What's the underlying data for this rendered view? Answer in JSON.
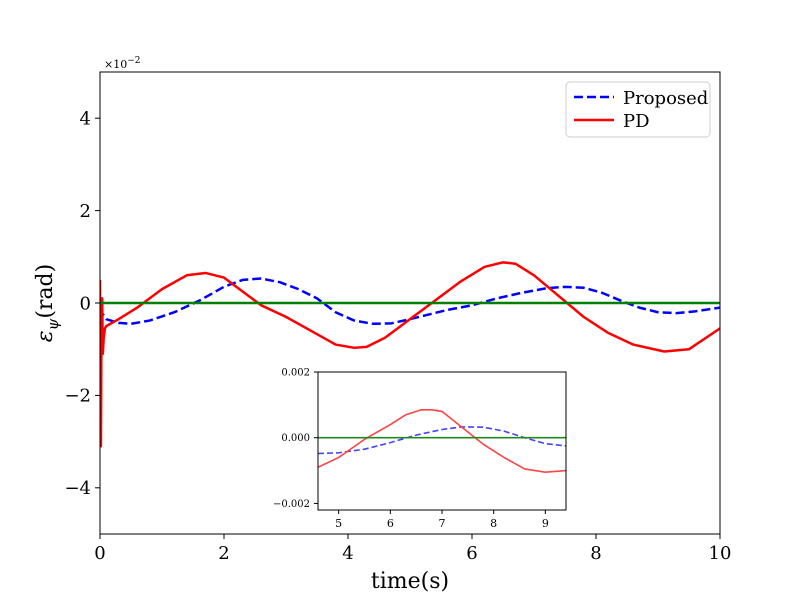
{
  "chart_data": {
    "type": "line",
    "main": {
      "xlabel": "time(s)",
      "ylabel": "ε_ψ(rad)",
      "ylabel_main": "ε",
      "ylabel_sub": "ψ",
      "ylabel_unit": "(rad)",
      "scale_label_base": "×10",
      "scale_label_exp": "−2",
      "xlim": [
        0,
        10
      ],
      "ylim": [
        -5,
        5
      ],
      "xticks": [
        0,
        2,
        4,
        6,
        8,
        10
      ],
      "yticks": [
        -4,
        -2,
        0,
        2,
        4
      ],
      "ytick_labels": [
        "−4",
        "−2",
        "0",
        "2",
        "4"
      ],
      "legend_position": "top-right",
      "series": [
        {
          "name": "Proposed",
          "color": "#0000ff",
          "style": "dashed",
          "x": [
            0.0,
            0.02,
            0.05,
            0.1,
            0.3,
            0.5,
            0.8,
            1.2,
            1.6,
            2.0,
            2.3,
            2.6,
            2.9,
            3.2,
            3.5,
            3.8,
            4.1,
            4.4,
            4.7,
            5.0,
            5.3,
            5.6,
            6.0,
            6.4,
            6.8,
            7.2,
            7.5,
            7.8,
            8.1,
            8.4,
            8.7,
            9.0,
            9.3,
            9.6,
            10.0
          ],
          "y": [
            -0.3,
            -0.2,
            -0.25,
            -0.35,
            -0.43,
            -0.45,
            -0.38,
            -0.2,
            0.05,
            0.35,
            0.5,
            0.53,
            0.45,
            0.3,
            0.1,
            -0.2,
            -0.38,
            -0.45,
            -0.44,
            -0.35,
            -0.25,
            -0.15,
            -0.05,
            0.1,
            0.22,
            0.32,
            0.35,
            0.33,
            0.22,
            0.05,
            -0.1,
            -0.2,
            -0.22,
            -0.18,
            -0.1
          ]
        },
        {
          "name": "PD",
          "color": "#ff0000",
          "style": "solid",
          "x": [
            0.0,
            0.015,
            0.025,
            0.035,
            0.045,
            0.06,
            0.08,
            0.1,
            0.3,
            0.6,
            1.0,
            1.4,
            1.7,
            2.0,
            2.3,
            2.6,
            3.0,
            3.4,
            3.8,
            4.1,
            4.3,
            4.6,
            5.0,
            5.4,
            5.8,
            6.2,
            6.5,
            6.7,
            7.0,
            7.4,
            7.8,
            8.2,
            8.6,
            9.1,
            9.5,
            10.0
          ],
          "y": [
            0.5,
            -3.1,
            -0.2,
            0.1,
            -1.1,
            -0.75,
            -0.55,
            -0.5,
            -0.35,
            -0.1,
            0.3,
            0.6,
            0.65,
            0.55,
            0.25,
            -0.05,
            -0.3,
            -0.6,
            -0.9,
            -0.97,
            -0.95,
            -0.75,
            -0.35,
            0.05,
            0.45,
            0.78,
            0.88,
            0.85,
            0.6,
            0.15,
            -0.3,
            -0.65,
            -0.9,
            -1.05,
            -1.0,
            -0.55
          ]
        },
        {
          "name": "zero",
          "color": "#008000",
          "style": "solid",
          "x": [
            0,
            10
          ],
          "y": [
            0,
            0
          ]
        }
      ]
    },
    "inset": {
      "xlim": [
        4.6,
        9.4
      ],
      "ylim": [
        -0.0022,
        0.002
      ],
      "xticks": [
        5,
        6,
        7,
        8,
        9
      ],
      "yticks": [
        -0.002,
        0.0,
        0.002
      ],
      "ytick_labels": [
        "−0.002",
        "0.000",
        "0.002"
      ],
      "series": [
        {
          "name": "Proposed",
          "color": "#4444ff",
          "style": "dashed",
          "x": [
            4.6,
            5.0,
            5.5,
            6.0,
            6.5,
            7.0,
            7.4,
            7.8,
            8.2,
            8.6,
            9.0,
            9.4
          ],
          "y": [
            -0.00048,
            -0.00046,
            -0.00035,
            -0.00015,
            8e-05,
            0.00025,
            0.00033,
            0.00032,
            0.0002,
            0.0,
            -0.00018,
            -0.00025
          ]
        },
        {
          "name": "PD",
          "color": "#ff4444",
          "style": "solid",
          "x": [
            4.6,
            5.0,
            5.5,
            6.0,
            6.3,
            6.6,
            6.8,
            7.0,
            7.4,
            7.8,
            8.2,
            8.6,
            9.0,
            9.4
          ],
          "y": [
            -0.0009,
            -0.0006,
            -5e-05,
            0.0004,
            0.0007,
            0.00085,
            0.00085,
            0.0008,
            0.0003,
            -0.0002,
            -0.0006,
            -0.00095,
            -0.00105,
            -0.001
          ]
        },
        {
          "name": "zero",
          "color": "#228822",
          "style": "solid",
          "x": [
            4.6,
            9.4
          ],
          "y": [
            0,
            0
          ]
        }
      ]
    }
  }
}
